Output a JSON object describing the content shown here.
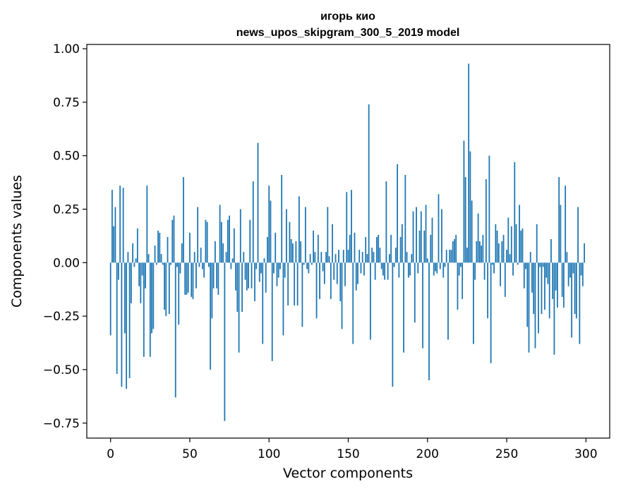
{
  "chart_data": {
    "type": "bar",
    "title_line1": "игорь кио",
    "title_line2": "news_upos_skipgram_300_5_2019 model",
    "xlabel": "Vector components",
    "ylabel": "Components values",
    "xlim": [
      -15,
      315
    ],
    "ylim": [
      -0.82,
      1.02
    ],
    "xticks": [
      0,
      50,
      100,
      150,
      200,
      250,
      300
    ],
    "yticks": [
      -0.75,
      -0.5,
      -0.25,
      0.0,
      0.25,
      0.5,
      0.75,
      1.0
    ],
    "ytick_labels": [
      "−0.75",
      "−0.50",
      "−0.25",
      "0.00",
      "0.25",
      "0.50",
      "0.75",
      "1.00"
    ],
    "bar_color": "#1f77b4",
    "grid": false,
    "values": [
      -0.34,
      0.34,
      0.17,
      0.26,
      -0.52,
      -0.08,
      0.36,
      -0.58,
      0.35,
      -0.33,
      -0.59,
      0.05,
      -0.54,
      -0.19,
      0.09,
      -0.02,
      0.02,
      0.16,
      -0.11,
      -0.19,
      -0.06,
      -0.44,
      -0.12,
      0.36,
      0.04,
      -0.44,
      -0.33,
      -0.31,
      0.08,
      -0.01,
      0.15,
      0.14,
      0.04,
      -0.01,
      -0.22,
      -0.25,
      0.12,
      -0.24,
      -0.01,
      0.2,
      0.22,
      -0.63,
      -0.02,
      -0.29,
      -0.05,
      0.09,
      0.4,
      -0.15,
      -0.15,
      -0.14,
      0.14,
      -0.16,
      -0.17,
      0.05,
      -0.12,
      0.26,
      -0.02,
      0.07,
      -0.03,
      -0.07,
      0.2,
      0.19,
      -0.02,
      -0.5,
      -0.26,
      -0.12,
      0.1,
      -0.12,
      -0.15,
      0.27,
      0.19,
      0.09,
      -0.74,
      0.05,
      0.2,
      0.22,
      -0.03,
      0.02,
      0.16,
      -0.13,
      -0.23,
      -0.42,
      0.25,
      -0.23,
      0.05,
      -0.08,
      -0.13,
      -0.12,
      0.2,
      -0.12,
      0.38,
      -0.18,
      -0.03,
      0.56,
      -0.09,
      -0.05,
      -0.38,
      0.02,
      -0.14,
      0.12,
      0.36,
      0.29,
      -0.46,
      -0.05,
      0.14,
      -0.11,
      -0.07,
      -0.03,
      0.41,
      -0.34,
      -0.07,
      0.25,
      -0.2,
      0.19,
      0.11,
      0.09,
      -0.2,
      0.1,
      -0.2,
      0.31,
      0.1,
      -0.3,
      -0.01,
      0.26,
      -0.03,
      -0.05,
      0.04,
      -0.01,
      0.15,
      0.05,
      -0.26,
      0.13,
      -0.17,
      0.05,
      -0.04,
      -0.1,
      0.05,
      0.26,
      0.03,
      -0.17,
      0.18,
      -0.08,
      0.04,
      -0.1,
      0.06,
      -0.18,
      -0.31,
      0.06,
      -0.11,
      0.33,
      0.06,
      0.13,
      0.34,
      -0.38,
      0.14,
      -0.13,
      -0.1,
      0.06,
      -0.05,
      0.05,
      -0.06,
      0.12,
      0.04,
      0.74,
      -0.36,
      0.07,
      0.05,
      -0.08,
      0.12,
      0.13,
      0.07,
      -0.03,
      -0.06,
      -0.08,
      0.38,
      -0.08,
      0.04,
      0.13,
      -0.58,
      -0.02,
      0.07,
      0.46,
      -0.07,
      0.12,
      0.18,
      -0.42,
      0.41,
      0.05,
      -0.07,
      -0.06,
      0.04,
      0.24,
      -0.28,
      0.26,
      -0.05,
      0.15,
      0.24,
      -0.4,
      0.15,
      0.27,
      0.02,
      -0.55,
      0.13,
      0.21,
      -0.06,
      -0.04,
      -0.05,
      0.32,
      -0.03,
      0.25,
      -0.07,
      -0.02,
      0.06,
      -0.36,
      0.06,
      0.06,
      0.1,
      0.11,
      0.13,
      -0.22,
      -0.06,
      -0.02,
      -0.17,
      0.57,
      0.4,
      0.07,
      0.93,
      0.52,
      0.29,
      -0.38,
      -0.08,
      0.1,
      0.23,
      0.1,
      0.08,
      0.13,
      -0.08,
      0.39,
      -0.26,
      0.5,
      -0.47,
      -0.01,
      -0.05,
      0.18,
      0.15,
      0.09,
      -0.11,
      0.1,
      0.13,
      -0.16,
      0.06,
      0.21,
      0.04,
      0.17,
      -0.06,
      0.47,
      0.18,
      -0.01,
      0.27,
      0.15,
      0.16,
      -0.12,
      -0.03,
      -0.3,
      -0.42,
      0.05,
      -0.14,
      -0.24,
      -0.4,
      0.18,
      -0.33,
      -0.02,
      -0.24,
      -0.02,
      -0.22,
      -0.07,
      -0.1,
      -0.26,
      0.11,
      -0.17,
      -0.43,
      -0.13,
      -0.21,
      0.4,
      0.27,
      -0.16,
      -0.21,
      0.36,
      0.05,
      -0.11,
      -0.07,
      -0.35,
      -0.05,
      -0.24,
      -0.26,
      0.26,
      -0.38,
      -0.06,
      -0.11,
      0.09
    ]
  }
}
